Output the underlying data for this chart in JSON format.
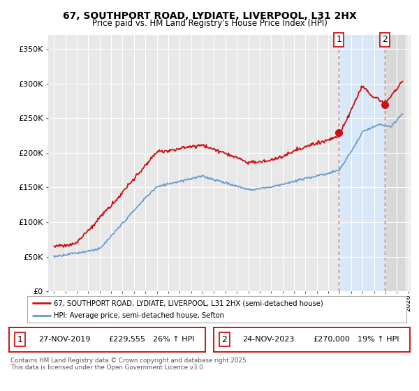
{
  "title": "67, SOUTHPORT ROAD, LYDIATE, LIVERPOOL, L31 2HX",
  "subtitle": "Price paid vs. HM Land Registry's House Price Index (HPI)",
  "ylabel_ticks": [
    "£0",
    "£50K",
    "£100K",
    "£150K",
    "£200K",
    "£250K",
    "£300K",
    "£350K"
  ],
  "ytick_values": [
    0,
    50000,
    100000,
    150000,
    200000,
    250000,
    300000,
    350000
  ],
  "ylim": [
    0,
    370000
  ],
  "xlim_start": 1994.5,
  "xlim_end": 2026.2,
  "line1_color": "#cc1111",
  "line2_color": "#6699cc",
  "marker1_date": 2019.92,
  "marker1_price": 229555,
  "marker2_date": 2023.92,
  "marker2_price": 270000,
  "legend_line1": "67, SOUTHPORT ROAD, LYDIATE, LIVERPOOL, L31 2HX (semi-detached house)",
  "legend_line2": "HPI: Average price, semi-detached house, Sefton",
  "sale1_date": "27-NOV-2019",
  "sale1_price": "£229,555",
  "sale1_hpi": "26% ↑ HPI",
  "sale2_date": "24-NOV-2023",
  "sale2_price": "£270,000",
  "sale2_hpi": "19% ↑ HPI",
  "footnote": "Contains HM Land Registry data © Crown copyright and database right 2025.\nThis data is licensed under the Open Government Licence v3.0.",
  "bg_color": "#ffffff",
  "plot_bg_color": "#e8e8e8",
  "grid_color": "#ffffff",
  "shaded_zone_color": "#d8e8f8",
  "hatch_zone_color": "#d0d0d0"
}
